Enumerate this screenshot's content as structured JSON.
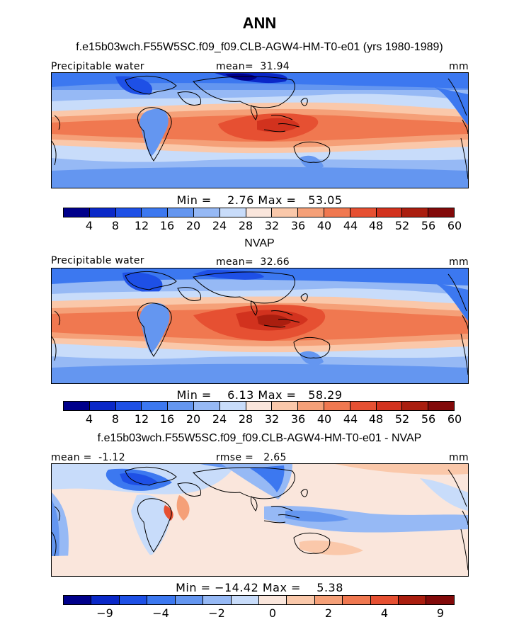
{
  "figure": {
    "title": "ANN"
  },
  "colors": {
    "ramp15": [
      "#00008b",
      "#0a28c8",
      "#1e50e6",
      "#3c78f0",
      "#6496f0",
      "#96b9f5",
      "#c8dcfa",
      "#fae6dc",
      "#fac8aa",
      "#f5a078",
      "#f07850",
      "#e65032",
      "#d2321e",
      "#aa1e0f",
      "#820a0a"
    ],
    "ramp14": [
      "#00008b",
      "#0a28c8",
      "#1e50e6",
      "#3c78f0",
      "#6496f0",
      "#96b9f5",
      "#c8dcfa",
      "#fae6dc",
      "#fac8aa",
      "#f5a078",
      "#f07850",
      "#e65032",
      "#aa1e0f",
      "#820a0a"
    ],
    "land_outline": "#000000"
  },
  "chart_data": [
    {
      "type": "heatmap",
      "panel_title": "f.e15b03wch.F55W5SC.f09_f09.CLB-AGW4-HM-T0-e01 (yrs 1980-1989)",
      "left_label": "Precipitable water",
      "center_label": "mean=  31.94",
      "right_label": "mm",
      "mean": 31.94,
      "min": 2.76,
      "max": 53.05,
      "stats_text": "Min =    2.76 Max =   53.05",
      "colorbar_levels": [
        "4",
        "8",
        "12",
        "16",
        "20",
        "24",
        "28",
        "32",
        "36",
        "40",
        "44",
        "48",
        "52",
        "56",
        "60"
      ]
    },
    {
      "type": "heatmap",
      "panel_title": "NVAP",
      "left_label": "Precipitable water",
      "center_label": "mean=  32.66",
      "right_label": "mm",
      "mean": 32.66,
      "min": 6.13,
      "max": 58.29,
      "stats_text": "Min =    6.13 Max =   58.29",
      "colorbar_levels": [
        "4",
        "8",
        "12",
        "16",
        "20",
        "24",
        "28",
        "32",
        "36",
        "40",
        "44",
        "48",
        "52",
        "56",
        "60"
      ]
    },
    {
      "type": "heatmap",
      "panel_title": "f.e15b03wch.F55W5SC.f09_f09.CLB-AGW4-HM-T0-e01 - NVAP",
      "left_label": "mean =  -1.12",
      "center_label": "rmse =   2.65",
      "right_label": "mm",
      "mean": -1.12,
      "rmse": 2.65,
      "min": -14.42,
      "max": 5.38,
      "stats_text": "Min = −14.42 Max =    5.38",
      "colorbar_levels": [
        "−9",
        "−4",
        "−2",
        "0",
        "2",
        "4",
        "9"
      ]
    }
  ]
}
